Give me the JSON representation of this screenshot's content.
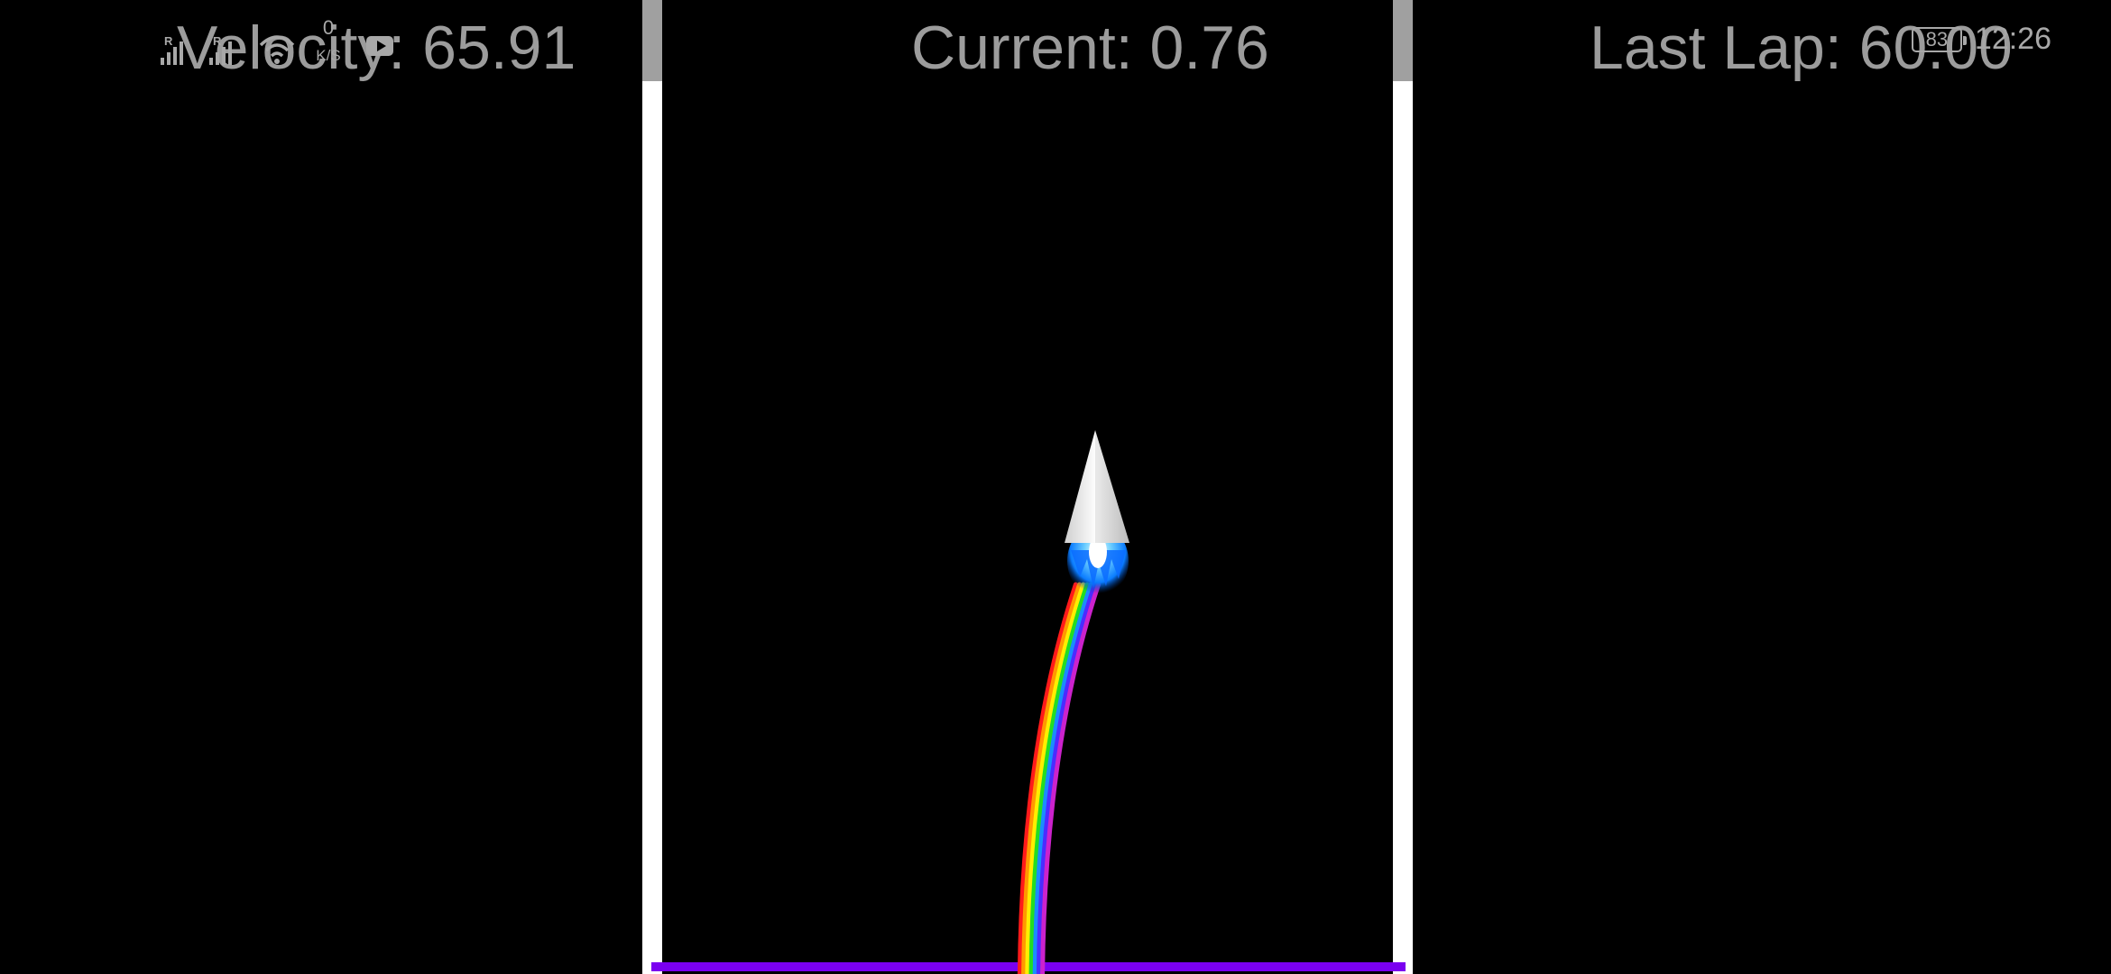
{
  "status_bar": {
    "signal_1_label": "R",
    "signal_2_label": "R",
    "net_speed_value": "0",
    "net_speed_unit": "K/S",
    "battery_level": "83",
    "time": "12:26",
    "icons": [
      "signal-icon",
      "signal-icon",
      "wifi-icon",
      "media-icon",
      "battery-icon"
    ]
  },
  "hud": {
    "velocity": "Velocity: 65.91",
    "current": "Current: 0.76",
    "last_lap": "Last Lap: 60.00"
  },
  "colors": {
    "background": "#000000",
    "hud_text": "#9c9c9c",
    "track_wall": "#ffffff",
    "wall_cap": "#a0a0a0",
    "finish_line": "#7a00f0",
    "rocket": "#e6e6e6",
    "thruster_flame": "#0a7cff",
    "trail_rainbow": [
      "#ff1a1a",
      "#ff9900",
      "#ffee00",
      "#22dd22",
      "#1a8cff",
      "#4b2cff",
      "#cc22cc"
    ]
  }
}
